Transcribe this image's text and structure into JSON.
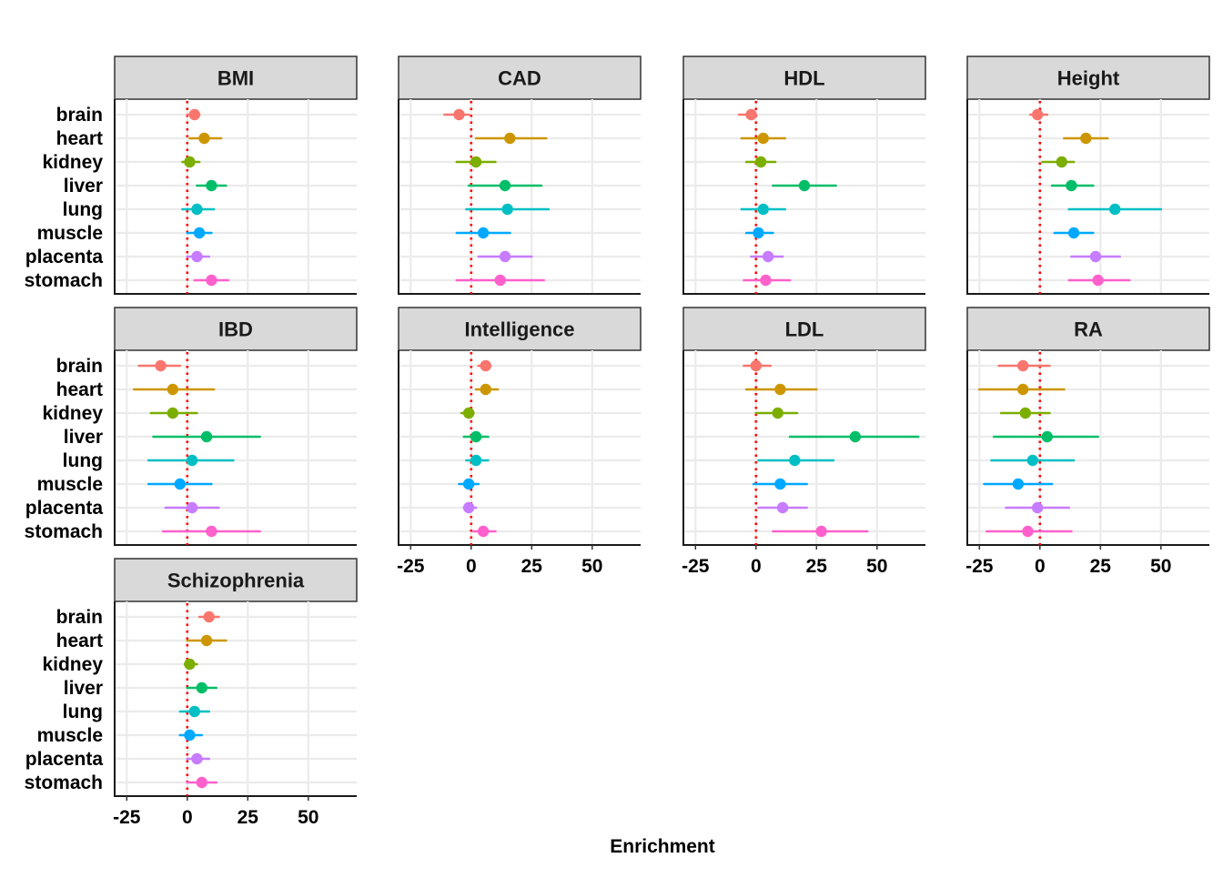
{
  "chart_data": {
    "type": "forest-facet",
    "xlabel": "Enrichment",
    "xlim": [
      -30,
      70
    ],
    "x_ticks": [
      -25,
      0,
      25,
      50
    ],
    "reference_line_x": 0,
    "tissues": [
      "brain",
      "heart",
      "kidney",
      "liver",
      "lung",
      "muscle",
      "placenta",
      "stomach"
    ],
    "tissue_colors": {
      "brain": "#F8766D",
      "heart": "#CD9600",
      "kidney": "#7CAE00",
      "liver": "#00BE67",
      "lung": "#00BFC4",
      "muscle": "#00A9FF",
      "placenta": "#C77CFF",
      "stomach": "#FF61CC"
    },
    "panels": [
      {
        "trait": "BMI",
        "points": [
          {
            "tissue": "brain",
            "est": 3,
            "lo": 0,
            "hi": 5
          },
          {
            "tissue": "heart",
            "est": 7,
            "lo": 1,
            "hi": 14
          },
          {
            "tissue": "kidney",
            "est": 1,
            "lo": -2,
            "hi": 5
          },
          {
            "tissue": "liver",
            "est": 10,
            "lo": 4,
            "hi": 16
          },
          {
            "tissue": "lung",
            "est": 4,
            "lo": -2,
            "hi": 11
          },
          {
            "tissue": "muscle",
            "est": 5,
            "lo": 0,
            "hi": 10
          },
          {
            "tissue": "placenta",
            "est": 4,
            "lo": 0,
            "hi": 9
          },
          {
            "tissue": "stomach",
            "est": 10,
            "lo": 3,
            "hi": 17
          }
        ]
      },
      {
        "trait": "CAD",
        "points": [
          {
            "tissue": "brain",
            "est": -5,
            "lo": -11,
            "hi": -1
          },
          {
            "tissue": "heart",
            "est": 16,
            "lo": 2,
            "hi": 31
          },
          {
            "tissue": "kidney",
            "est": 2,
            "lo": -6,
            "hi": 10
          },
          {
            "tissue": "liver",
            "est": 14,
            "lo": -1,
            "hi": 29
          },
          {
            "tissue": "lung",
            "est": 15,
            "lo": -2,
            "hi": 32
          },
          {
            "tissue": "muscle",
            "est": 5,
            "lo": -6,
            "hi": 16
          },
          {
            "tissue": "placenta",
            "est": 14,
            "lo": 3,
            "hi": 25
          },
          {
            "tissue": "stomach",
            "est": 12,
            "lo": -6,
            "hi": 30
          }
        ]
      },
      {
        "trait": "HDL",
        "points": [
          {
            "tissue": "brain",
            "est": -2,
            "lo": -7,
            "hi": 0
          },
          {
            "tissue": "heart",
            "est": 3,
            "lo": -6,
            "hi": 12
          },
          {
            "tissue": "kidney",
            "est": 2,
            "lo": -4,
            "hi": 8
          },
          {
            "tissue": "liver",
            "est": 20,
            "lo": 7,
            "hi": 33
          },
          {
            "tissue": "lung",
            "est": 3,
            "lo": -6,
            "hi": 12
          },
          {
            "tissue": "muscle",
            "est": 1,
            "lo": -4,
            "hi": 7
          },
          {
            "tissue": "placenta",
            "est": 5,
            "lo": -2,
            "hi": 11
          },
          {
            "tissue": "stomach",
            "est": 4,
            "lo": -5,
            "hi": 14
          }
        ]
      },
      {
        "trait": "Height",
        "points": [
          {
            "tissue": "brain",
            "est": -1,
            "lo": -4,
            "hi": 3
          },
          {
            "tissue": "heart",
            "est": 19,
            "lo": 10,
            "hi": 28
          },
          {
            "tissue": "kidney",
            "est": 9,
            "lo": 1,
            "hi": 14
          },
          {
            "tissue": "liver",
            "est": 13,
            "lo": 5,
            "hi": 22
          },
          {
            "tissue": "lung",
            "est": 31,
            "lo": 12,
            "hi": 50
          },
          {
            "tissue": "muscle",
            "est": 14,
            "lo": 6,
            "hi": 22
          },
          {
            "tissue": "placenta",
            "est": 23,
            "lo": 13,
            "hi": 33
          },
          {
            "tissue": "stomach",
            "est": 24,
            "lo": 12,
            "hi": 37
          }
        ]
      },
      {
        "trait": "IBD",
        "points": [
          {
            "tissue": "brain",
            "est": -11,
            "lo": -20,
            "hi": -3
          },
          {
            "tissue": "heart",
            "est": -6,
            "lo": -22,
            "hi": 11
          },
          {
            "tissue": "kidney",
            "est": -6,
            "lo": -15,
            "hi": 4
          },
          {
            "tissue": "liver",
            "est": 8,
            "lo": -14,
            "hi": 30
          },
          {
            "tissue": "lung",
            "est": 2,
            "lo": -16,
            "hi": 19
          },
          {
            "tissue": "muscle",
            "est": -3,
            "lo": -16,
            "hi": 10
          },
          {
            "tissue": "placenta",
            "est": 2,
            "lo": -9,
            "hi": 13
          },
          {
            "tissue": "stomach",
            "est": 10,
            "lo": -10,
            "hi": 30
          }
        ]
      },
      {
        "trait": "Intelligence",
        "points": [
          {
            "tissue": "brain",
            "est": 6,
            "lo": 3,
            "hi": 8
          },
          {
            "tissue": "heart",
            "est": 6,
            "lo": 2,
            "hi": 11
          },
          {
            "tissue": "kidney",
            "est": -1,
            "lo": -4,
            "hi": 1
          },
          {
            "tissue": "liver",
            "est": 2,
            "lo": -3,
            "hi": 7
          },
          {
            "tissue": "lung",
            "est": 2,
            "lo": -2,
            "hi": 7
          },
          {
            "tissue": "muscle",
            "est": -1,
            "lo": -5,
            "hi": 3
          },
          {
            "tissue": "placenta",
            "est": -1,
            "lo": -3,
            "hi": 2
          },
          {
            "tissue": "stomach",
            "est": 5,
            "lo": 1,
            "hi": 10
          }
        ]
      },
      {
        "trait": "LDL",
        "points": [
          {
            "tissue": "brain",
            "est": 0,
            "lo": -5,
            "hi": 6
          },
          {
            "tissue": "heart",
            "est": 10,
            "lo": -4,
            "hi": 25
          },
          {
            "tissue": "kidney",
            "est": 9,
            "lo": 0,
            "hi": 17
          },
          {
            "tissue": "liver",
            "est": 41,
            "lo": 14,
            "hi": 67
          },
          {
            "tissue": "lung",
            "est": 16,
            "lo": 1,
            "hi": 32
          },
          {
            "tissue": "muscle",
            "est": 10,
            "lo": -1,
            "hi": 21
          },
          {
            "tissue": "placenta",
            "est": 11,
            "lo": 1,
            "hi": 21
          },
          {
            "tissue": "stomach",
            "est": 27,
            "lo": 7,
            "hi": 46
          }
        ]
      },
      {
        "trait": "RA",
        "points": [
          {
            "tissue": "brain",
            "est": -7,
            "lo": -17,
            "hi": 4
          },
          {
            "tissue": "heart",
            "est": -7,
            "lo": -25,
            "hi": 10
          },
          {
            "tissue": "kidney",
            "est": -6,
            "lo": -16,
            "hi": 4
          },
          {
            "tissue": "liver",
            "est": 3,
            "lo": -19,
            "hi": 24
          },
          {
            "tissue": "lung",
            "est": -3,
            "lo": -20,
            "hi": 14
          },
          {
            "tissue": "muscle",
            "est": -9,
            "lo": -23,
            "hi": 5
          },
          {
            "tissue": "placenta",
            "est": -1,
            "lo": -14,
            "hi": 12
          },
          {
            "tissue": "stomach",
            "est": -5,
            "lo": -22,
            "hi": 13
          }
        ]
      },
      {
        "trait": "Schizophrenia",
        "points": [
          {
            "tissue": "brain",
            "est": 9,
            "lo": 5,
            "hi": 13
          },
          {
            "tissue": "heart",
            "est": 8,
            "lo": 0,
            "hi": 16
          },
          {
            "tissue": "kidney",
            "est": 1,
            "lo": -1,
            "hi": 4
          },
          {
            "tissue": "liver",
            "est": 6,
            "lo": 0,
            "hi": 12
          },
          {
            "tissue": "lung",
            "est": 3,
            "lo": -3,
            "hi": 9
          },
          {
            "tissue": "muscle",
            "est": 1,
            "lo": -3,
            "hi": 6
          },
          {
            "tissue": "placenta",
            "est": 4,
            "lo": 0,
            "hi": 9
          },
          {
            "tissue": "stomach",
            "est": 6,
            "lo": 0,
            "hi": 12
          }
        ]
      }
    ]
  }
}
